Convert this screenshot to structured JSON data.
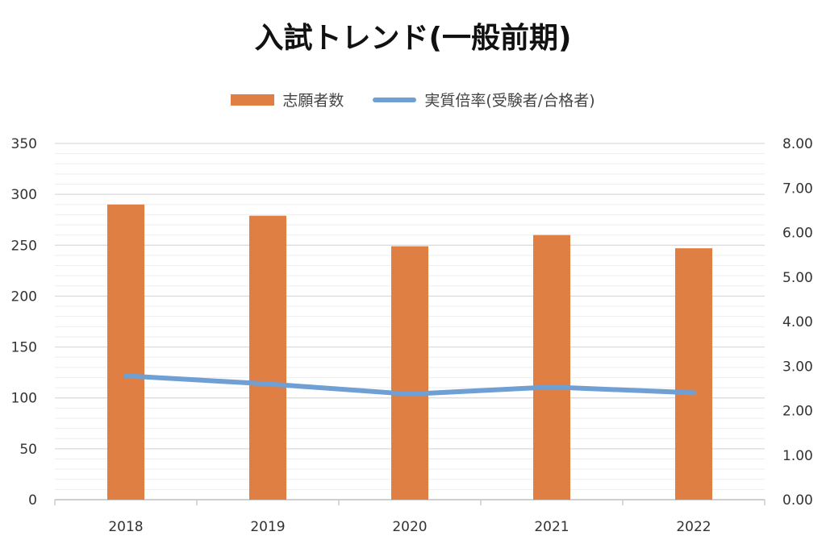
{
  "chart_data": {
    "type": "bar",
    "title": "入試トレンド(一般前期)",
    "categories": [
      "2018",
      "2019",
      "2020",
      "2021",
      "2022"
    ],
    "series": [
      {
        "name": "志願者数",
        "type": "bar",
        "axis": "left",
        "color": "#E07F43",
        "values": [
          290,
          279,
          249,
          260,
          247
        ]
      },
      {
        "name": "実質倍率(受験者/合格者)",
        "type": "line",
        "axis": "right",
        "color": "#6F9FD3",
        "values": [
          2.78,
          2.6,
          2.37,
          2.53,
          2.4
        ]
      }
    ],
    "y_left": {
      "min": 0,
      "max": 350,
      "ticks": [
        "0",
        "50",
        "100",
        "150",
        "200",
        "250",
        "300",
        "350"
      ]
    },
    "y_right": {
      "min": 0,
      "max": 8,
      "ticks": [
        "0.00",
        "1.00",
        "2.00",
        "3.00",
        "4.00",
        "5.00",
        "6.00",
        "7.00",
        "8.00"
      ]
    },
    "grid": true,
    "legend_position": "top"
  }
}
